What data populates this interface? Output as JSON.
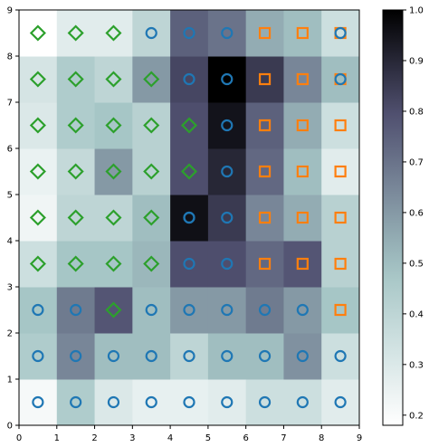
{
  "chart_data": {
    "type": "heatmap",
    "title": "",
    "xlabel": "",
    "ylabel": "",
    "xlim": [
      0,
      9
    ],
    "ylim": [
      0,
      9
    ],
    "x_ticks": [
      "0",
      "1",
      "2",
      "3",
      "4",
      "5",
      "6",
      "7",
      "8",
      "9"
    ],
    "y_ticks": [
      "0",
      "1",
      "2",
      "3",
      "4",
      "5",
      "6",
      "7",
      "8",
      "9"
    ],
    "grid": false,
    "colormap": "bone_r",
    "colorbar": {
      "min": 0.18,
      "max": 1.0,
      "ticks": [
        "0.2",
        "0.3",
        "0.4",
        "0.5",
        "0.6",
        "0.7",
        "0.8",
        "0.9",
        "1.0"
      ]
    },
    "rows_bottom_to_top": [
      [
        0.21,
        0.45,
        0.3,
        0.26,
        0.26,
        0.28,
        0.35,
        0.35,
        0.28
      ],
      [
        0.45,
        0.65,
        0.5,
        0.5,
        0.4,
        0.5,
        0.5,
        0.62,
        0.35
      ],
      [
        0.48,
        0.68,
        0.78,
        0.5,
        0.6,
        0.6,
        0.68,
        0.6,
        0.48
      ],
      [
        0.35,
        0.48,
        0.48,
        0.52,
        0.8,
        0.8,
        0.73,
        0.78,
        0.42
      ],
      [
        0.23,
        0.4,
        0.4,
        0.5,
        0.96,
        0.85,
        0.65,
        0.55,
        0.42
      ],
      [
        0.25,
        0.38,
        0.6,
        0.42,
        0.8,
        0.9,
        0.73,
        0.5,
        0.28
      ],
      [
        0.3,
        0.45,
        0.48,
        0.42,
        0.8,
        0.95,
        0.75,
        0.55,
        0.35
      ],
      [
        0.32,
        0.45,
        0.4,
        0.6,
        0.82,
        1.0,
        0.85,
        0.65,
        0.5
      ],
      [
        0.12,
        0.28,
        0.28,
        0.4,
        0.75,
        0.7,
        0.55,
        0.5,
        0.35
      ]
    ],
    "marker_classes": [
      {
        "shape": "circle",
        "color": "#1f77b4"
      },
      {
        "shape": "diamond",
        "color": "#2ca02c"
      },
      {
        "shape": "square",
        "color": "#ff7f0e"
      }
    ],
    "markers_bottom_to_top": [
      "000000000",
      "000000000",
      "001000002",
      "111100222",
      "111100222",
      "111110222",
      "111110222",
      "111100222",
      "111000222"
    ],
    "overlay_markers": [
      {
        "x": 4.5,
        "y": 4.5,
        "class": 0
      },
      {
        "x": 8.5,
        "y": 7.5,
        "class": 0
      },
      {
        "x": 8.5,
        "y": 8.5,
        "class": 0
      }
    ]
  }
}
